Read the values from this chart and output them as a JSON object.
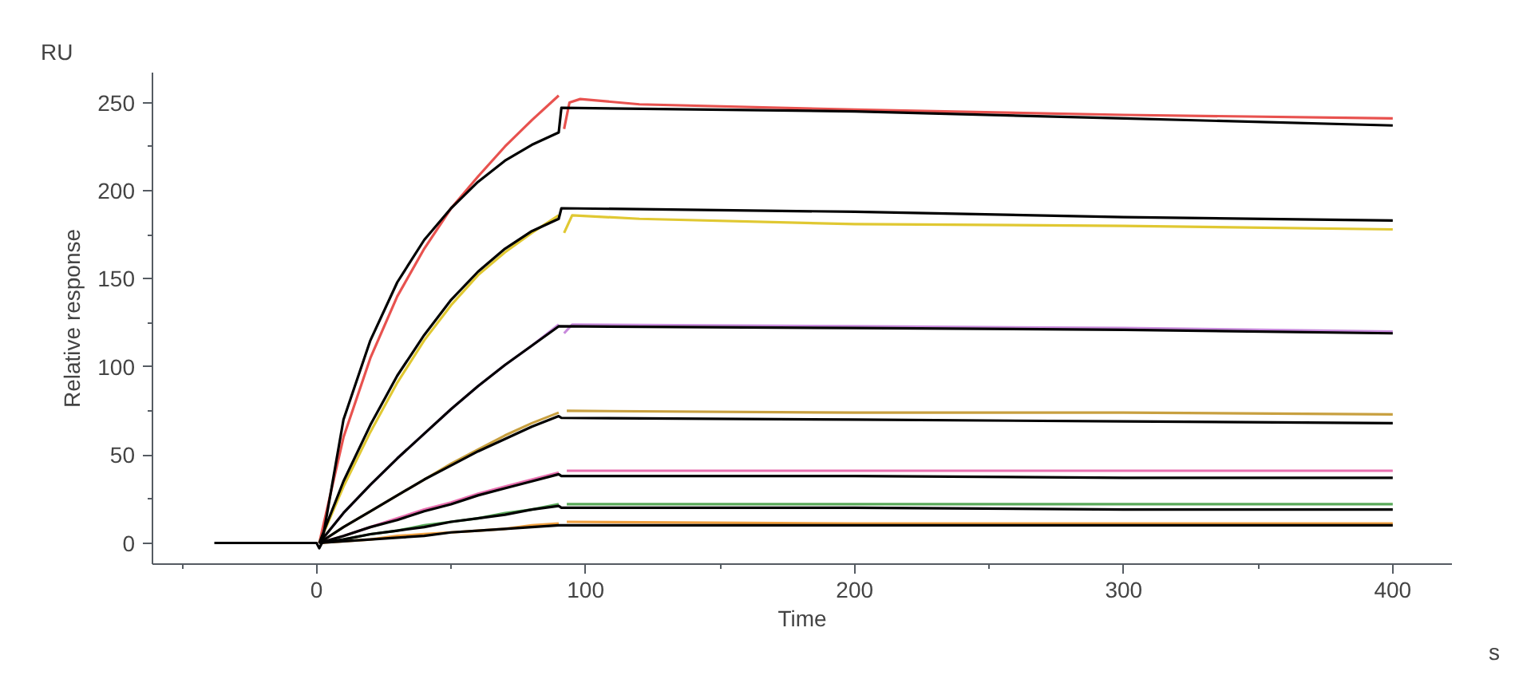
{
  "chart_data": {
    "type": "line",
    "xlabel": "Time",
    "ylabel": "Relative response",
    "annotations": [
      "RU",
      "s"
    ],
    "xlim": [
      -61,
      422
    ],
    "ylim": [
      -12,
      267
    ],
    "xticks": [
      {
        "value": -50,
        "label": null
      },
      0,
      {
        "value": 50,
        "label": null
      },
      100,
      {
        "value": 150,
        "label": null
      },
      200,
      {
        "value": 250,
        "label": null
      },
      300,
      {
        "value": 350,
        "label": null
      },
      400
    ],
    "yticks": [
      0,
      {
        "value": 25,
        "label": null
      },
      50,
      {
        "value": 75,
        "label": null
      },
      100,
      {
        "value": 125,
        "label": null
      },
      150,
      {
        "value": 175,
        "label": null
      },
      200,
      {
        "value": 225,
        "label": null
      },
      250
    ],
    "grid": false,
    "marker": "none",
    "line_style": "solid",
    "series": [
      {
        "color": "#e8524f",
        "x": [
          1,
          10,
          20,
          30,
          40,
          50,
          60,
          70,
          80,
          90,
          91,
          92,
          94,
          98,
          120,
          200,
          300,
          400
        ],
        "values": [
          0,
          60,
          105,
          140,
          167,
          190,
          208,
          225,
          240,
          254,
          null,
          235,
          250,
          252,
          249,
          246,
          243,
          241
        ]
      },
      {
        "color": "#e0c832",
        "x": [
          1,
          10,
          20,
          30,
          40,
          50,
          60,
          70,
          80,
          90,
          91,
          92,
          95,
          120,
          200,
          300,
          400
        ],
        "values": [
          0,
          32,
          63,
          91,
          115,
          135,
          152,
          165,
          176,
          186,
          null,
          176,
          186,
          184,
          181,
          180,
          178
        ]
      },
      {
        "color": "#c88adc",
        "x": [
          1,
          10,
          20,
          30,
          40,
          50,
          60,
          70,
          80,
          90,
          91,
          92,
          95,
          200,
          300,
          400
        ],
        "values": [
          0,
          17,
          33,
          48,
          62,
          76,
          89,
          101,
          112,
          124,
          null,
          119,
          124,
          123,
          122,
          120
        ]
      },
      {
        "color": "#c8a040",
        "x": [
          1,
          10,
          20,
          30,
          40,
          50,
          60,
          70,
          80,
          90,
          91,
          93,
          200,
          300,
          400
        ],
        "values": [
          0,
          9,
          18,
          27,
          36,
          45,
          53,
          61,
          68,
          74,
          null,
          75,
          74,
          74,
          73
        ]
      },
      {
        "color": "#e870b0",
        "x": [
          1,
          10,
          20,
          30,
          40,
          50,
          60,
          70,
          80,
          90,
          91,
          93,
          200,
          300,
          400
        ],
        "values": [
          0,
          4,
          9,
          14,
          19,
          23,
          28,
          32,
          36,
          40,
          null,
          41,
          41,
          41,
          41
        ]
      },
      {
        "color": "#5aaa5a",
        "x": [
          1,
          10,
          20,
          30,
          40,
          50,
          60,
          70,
          80,
          90,
          91,
          93,
          200,
          300,
          400
        ],
        "values": [
          0,
          2,
          5,
          7,
          10,
          12,
          14,
          17,
          19,
          22,
          null,
          22,
          22,
          22,
          22
        ]
      },
      {
        "color": "#f0a040",
        "x": [
          1,
          10,
          20,
          30,
          40,
          50,
          60,
          70,
          80,
          90,
          91,
          93,
          200,
          300,
          400
        ],
        "values": [
          0,
          1,
          2,
          4,
          5,
          6,
          7,
          8,
          10,
          11,
          null,
          12,
          11,
          11,
          11
        ]
      },
      {
        "color": "#000000",
        "x": [
          -38,
          0,
          1,
          2,
          10,
          20,
          30,
          40,
          50,
          60,
          70,
          80,
          90,
          91,
          200,
          300,
          400
        ],
        "values": [
          0,
          0,
          -3,
          0,
          70,
          115,
          148,
          172,
          190,
          205,
          217,
          226,
          233,
          247,
          245,
          241,
          237
        ]
      },
      {
        "color": "#000000",
        "x": [
          1,
          10,
          20,
          30,
          40,
          50,
          60,
          70,
          80,
          90,
          91,
          200,
          300,
          400
        ],
        "values": [
          0,
          35,
          67,
          95,
          118,
          138,
          154,
          167,
          177,
          184,
          190,
          188,
          185,
          183
        ]
      },
      {
        "color": "#000000",
        "x": [
          1,
          10,
          20,
          30,
          40,
          50,
          60,
          70,
          80,
          90,
          200,
          300,
          400
        ],
        "values": [
          0,
          17,
          33,
          48,
          62,
          76,
          89,
          101,
          112,
          123,
          122,
          121,
          119
        ]
      },
      {
        "color": "#000000",
        "x": [
          1,
          10,
          20,
          30,
          40,
          50,
          60,
          70,
          80,
          90,
          91,
          200,
          300,
          400
        ],
        "values": [
          0,
          9,
          18,
          27,
          36,
          44,
          52,
          59,
          66,
          72,
          71,
          70,
          69,
          68
        ]
      },
      {
        "color": "#000000",
        "x": [
          1,
          10,
          20,
          30,
          40,
          50,
          60,
          70,
          80,
          90,
          91,
          200,
          300,
          400
        ],
        "values": [
          0,
          4,
          9,
          13,
          18,
          22,
          27,
          31,
          35,
          39,
          38,
          38,
          37,
          37
        ]
      },
      {
        "color": "#000000",
        "x": [
          1,
          10,
          20,
          30,
          40,
          50,
          60,
          70,
          80,
          90,
          91,
          200,
          300,
          400
        ],
        "values": [
          0,
          2,
          5,
          7,
          9,
          12,
          14,
          16,
          19,
          21,
          20,
          20,
          19,
          19
        ]
      },
      {
        "color": "#000000",
        "x": [
          1,
          10,
          20,
          30,
          40,
          50,
          60,
          70,
          80,
          90,
          400
        ],
        "values": [
          0,
          1,
          2,
          3,
          4,
          6,
          7,
          8,
          9,
          10,
          10
        ]
      }
    ]
  }
}
